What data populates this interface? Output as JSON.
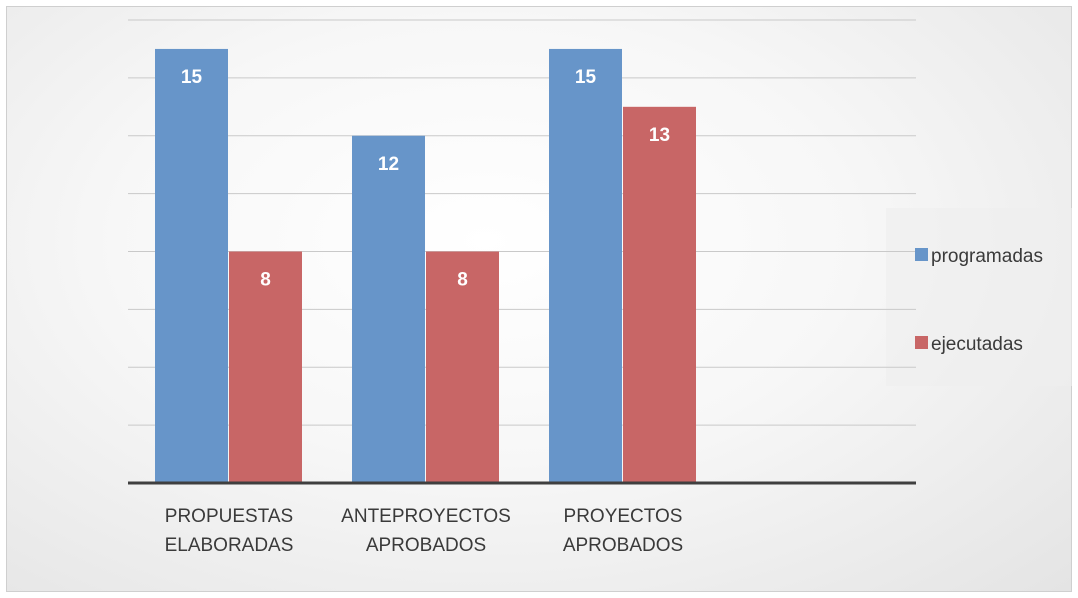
{
  "chart_data": {
    "type": "bar",
    "categories": [
      [
        "PROPUESTAS",
        "ELABORADAS"
      ],
      [
        "ANTEPROYECTOS",
        "APROBADOS"
      ],
      [
        "PROYECTOS",
        "APROBADOS"
      ]
    ],
    "series": [
      {
        "name": "programadas",
        "values": [
          15,
          12,
          15
        ],
        "color": "#6795C9"
      },
      {
        "name": "ejecutadas",
        "values": [
          8,
          8,
          13
        ],
        "color": "#C86666"
      }
    ],
    "ylim": [
      0,
      16
    ],
    "y_gridline_step": 2,
    "grid": true,
    "data_labels": true,
    "legend": {
      "position": "right"
    },
    "title": "",
    "xlabel": "",
    "ylabel": ""
  }
}
